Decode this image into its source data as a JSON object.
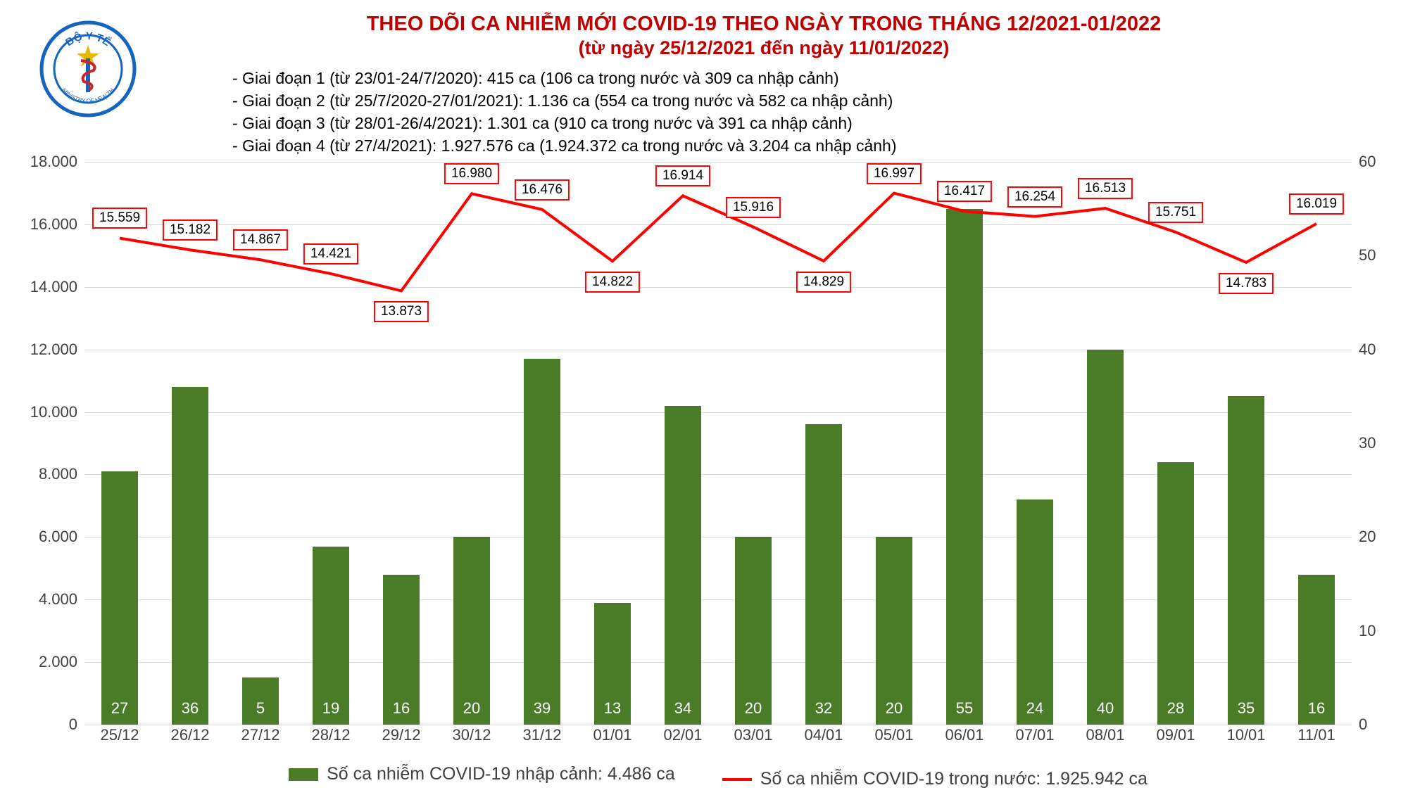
{
  "title": {
    "line1": "THEO DÕI CA NHIỄM MỚI COVID-19 THEO NGÀY TRONG THÁNG 12/2021-01/2022",
    "line2": "(từ ngày 25/12/2021 đến ngày 11/01/2022)",
    "color": "#c00000"
  },
  "notes": [
    "- Giai đoạn 1 (từ 23/01-24/7/2020): 415 ca (106 ca trong nước và 309 ca nhập cảnh)",
    "- Giai đoạn 2 (từ 25/7/2020-27/01/2021): 1.136 ca (554 ca trong nước và 582 ca nhập cảnh)",
    "- Giai đoạn 3 (từ 28/01-26/4/2021): 1.301 ca (910 ca trong nước và 391 ca nhập cảnh)",
    "- Giai đoạn 4 (từ 27/4/2021): 1.927.576 ca (1.924.372 ca trong nước và 3.204 ca nhập cảnh)"
  ],
  "chart": {
    "type": "bar+line",
    "categories": [
      "25/12",
      "26/12",
      "27/12",
      "28/12",
      "29/12",
      "30/12",
      "31/12",
      "01/01",
      "02/01",
      "03/01",
      "04/01",
      "05/01",
      "06/01",
      "07/01",
      "08/01",
      "09/01",
      "10/01",
      "11/01"
    ],
    "bars": {
      "values": [
        27,
        36,
        5,
        19,
        16,
        20,
        39,
        13,
        34,
        20,
        32,
        20,
        55,
        24,
        40,
        28,
        35,
        16
      ],
      "heights_left_units": [
        8100,
        10800,
        1500,
        5700,
        4800,
        6000,
        11700,
        3900,
        10200,
        6000,
        9600,
        6000,
        16500,
        7200,
        12000,
        8400,
        10500,
        4800
      ],
      "color": "#4a7c28",
      "label_color": "#ffffff",
      "bar_width_fraction": 0.52
    },
    "line": {
      "values": [
        15559,
        15182,
        14867,
        14421,
        13873,
        16980,
        16476,
        14822,
        16914,
        15916,
        14829,
        16997,
        16417,
        16254,
        16513,
        15751,
        14783,
        16019
      ],
      "labels": [
        "15.559",
        "15.182",
        "14.867",
        "14.421",
        "13.873",
        "16.980",
        "16.476",
        "14.822",
        "16.914",
        "15.916",
        "14.829",
        "16.997",
        "16.417",
        "16.254",
        "16.513",
        "15.751",
        "14.783",
        "16.019"
      ],
      "color": "#ff0000",
      "label_bg": "#ffffff",
      "label_border": "#ff0000",
      "line_width": 4
    },
    "y_left": {
      "min": 0,
      "max": 18000,
      "step": 2000,
      "tick_labels": [
        "0",
        "2.000",
        "4.000",
        "6.000",
        "8.000",
        "10.000",
        "12.000",
        "14.000",
        "16.000",
        "18.000"
      ]
    },
    "y_right": {
      "min": 0,
      "max": 60,
      "step": 10,
      "tick_labels": [
        "0",
        "10",
        "20",
        "30",
        "40",
        "50",
        "60"
      ]
    },
    "grid_color": "#d9d9d9",
    "axis_font_color": "#404040",
    "axis_fontsize": 22
  },
  "legend": {
    "bar_label": "Số ca nhiễm COVID-19 nhập cảnh: 4.486 ca",
    "line_label": "Số ca nhiễm COVID-19 trong nước: 1.925.942 ca",
    "bar_color": "#4a7c28",
    "line_color": "#ff0000"
  },
  "logo": {
    "outer_text_top": "BỘ Y TẾ",
    "outer_text_bottom": "MINISTRY OF HEALTH",
    "circle_color": "#1565c0",
    "bg_color": "#ffffff",
    "star_color": "#e6b800",
    "snake_color": "#c62828"
  }
}
